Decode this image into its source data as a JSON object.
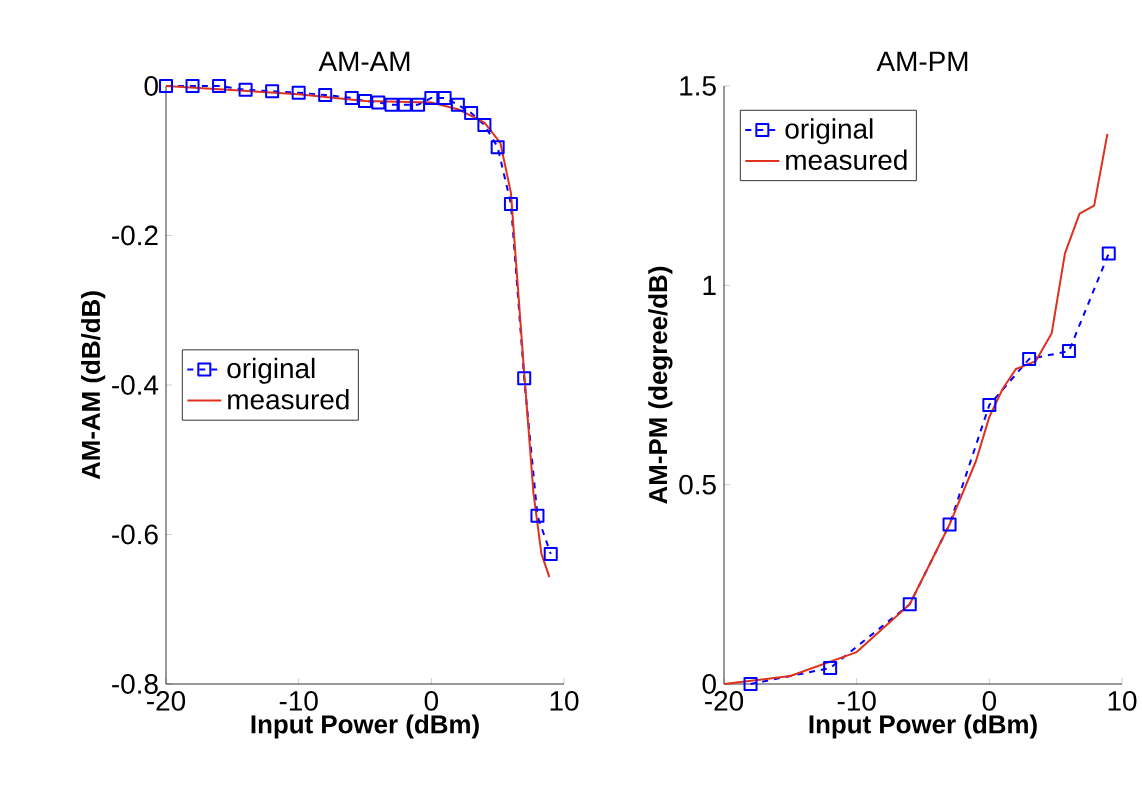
{
  "chart_data": [
    {
      "type": "line",
      "title": "AM-AM",
      "xlabel": "Input Power (dBm)",
      "ylabel": "AM-AM (dB/dB)",
      "xlim": [
        -20,
        10
      ],
      "xticks": [
        -20,
        -10,
        0,
        10
      ],
      "ylim": [
        -0.8,
        0
      ],
      "yticks": [
        -0.8,
        -0.6,
        -0.4,
        -0.2,
        0
      ],
      "legend": "left",
      "grid": false,
      "series": [
        {
          "name": "original",
          "color": "#0000ff",
          "marker": "square",
          "line_style": "dashed",
          "x": [
            -20,
            -18,
            -16,
            -14,
            -12,
            -10,
            -8,
            -6,
            -5,
            -4,
            -3,
            -2,
            -1,
            0,
            1,
            2,
            3,
            4,
            5,
            6,
            7,
            8,
            9
          ],
          "values": [
            0,
            0,
            0,
            -0.005,
            -0.007,
            -0.009,
            -0.012,
            -0.016,
            -0.02,
            -0.022,
            -0.025,
            -0.025,
            -0.025,
            -0.016,
            -0.016,
            -0.025,
            -0.036,
            -0.052,
            -0.082,
            -0.158,
            -0.391,
            -0.575,
            -0.626
          ]
        },
        {
          "name": "measured",
          "color": "#e0301e",
          "marker": "none",
          "line_style": "solid",
          "x": [
            -20,
            -10,
            -5,
            0,
            2,
            4,
            5.2,
            6,
            7,
            7.7,
            8.3,
            8.9
          ],
          "values": [
            0,
            -0.011,
            -0.02,
            -0.022,
            -0.031,
            -0.049,
            -0.076,
            -0.143,
            -0.384,
            -0.545,
            -0.626,
            -0.657
          ]
        }
      ]
    },
    {
      "type": "line",
      "title": "AM-PM",
      "xlabel": "Input Power (dBm)",
      "ylabel": "AM-PM (degree/dB)",
      "xlim": [
        -20,
        10
      ],
      "xticks": [
        -20,
        -10,
        0,
        10
      ],
      "ylim": [
        0,
        1.5
      ],
      "yticks": [
        0,
        0.5,
        1,
        1.5
      ],
      "legend": "top left",
      "grid": false,
      "series": [
        {
          "name": "original",
          "color": "#0000ff",
          "marker": "square",
          "line_style": "dashed",
          "x": [
            -18,
            -12,
            -6,
            -3,
            0,
            3,
            6,
            9
          ],
          "values": [
            0,
            0.04,
            0.2,
            0.4,
            0.7,
            0.815,
            0.835,
            1.08
          ]
        },
        {
          "name": "measured",
          "color": "#e0301e",
          "marker": "none",
          "line_style": "solid",
          "x": [
            -20,
            -15,
            -10,
            -6,
            -3,
            -1,
            0,
            1,
            2,
            3.5,
            4.7,
            5.7,
            6.8,
            7.9,
            8.9
          ],
          "values": [
            0,
            0.02,
            0.08,
            0.2,
            0.4,
            0.56,
            0.67,
            0.74,
            0.79,
            0.81,
            0.88,
            1.08,
            1.18,
            1.2,
            1.38
          ]
        }
      ]
    }
  ]
}
